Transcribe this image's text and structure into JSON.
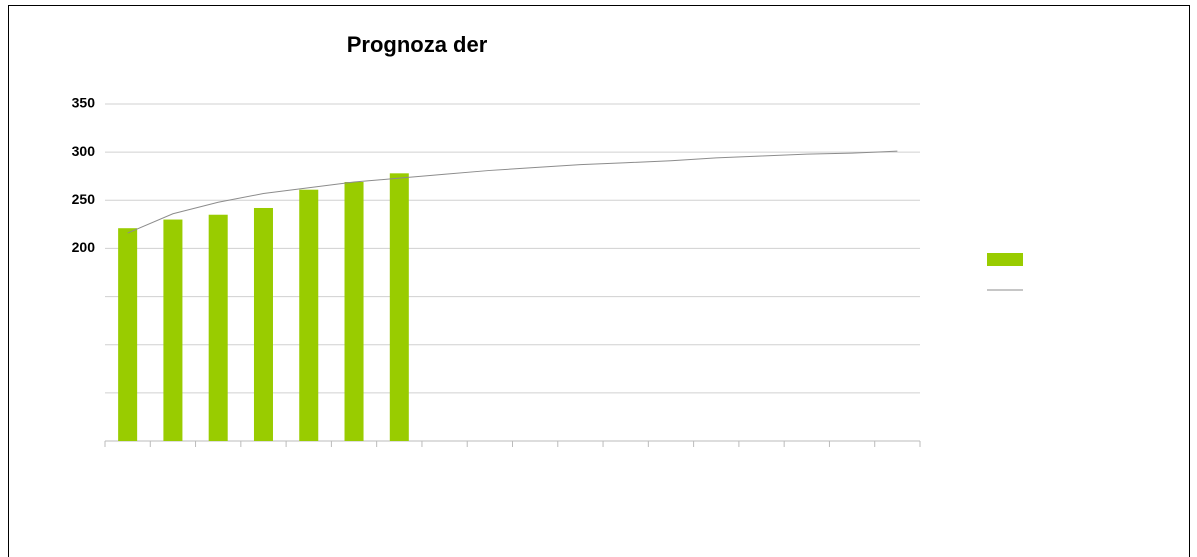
{
  "chart_data": {
    "type": "bar",
    "title": "Prognoza der",
    "categories": [
      null,
      null,
      null,
      null,
      null,
      null,
      null,
      null,
      null,
      null,
      null,
      null,
      null,
      null,
      null,
      null,
      null,
      null
    ],
    "series": [
      {
        "type": "bar",
        "color": "#99cc00",
        "values": [
          221,
          230,
          235,
          242,
          261,
          269,
          278,
          null,
          null,
          null,
          null,
          null,
          null,
          null,
          null,
          null,
          null,
          null
        ]
      },
      {
        "type": "line",
        "color": "#8c8c8c",
        "values": [
          216,
          236,
          248,
          257,
          263,
          269,
          273,
          277,
          281,
          284,
          287,
          289,
          291,
          294,
          296,
          298,
          299,
          301
        ]
      }
    ],
    "ylim": [
      0,
      350
    ],
    "yticks": [
      {
        "value": 0,
        "label": null
      },
      {
        "value": 50,
        "label": null
      },
      {
        "value": 100,
        "label": null
      },
      {
        "value": 150,
        "label": null
      },
      200,
      250,
      300,
      350
    ],
    "grid": true,
    "legend": "right"
  }
}
